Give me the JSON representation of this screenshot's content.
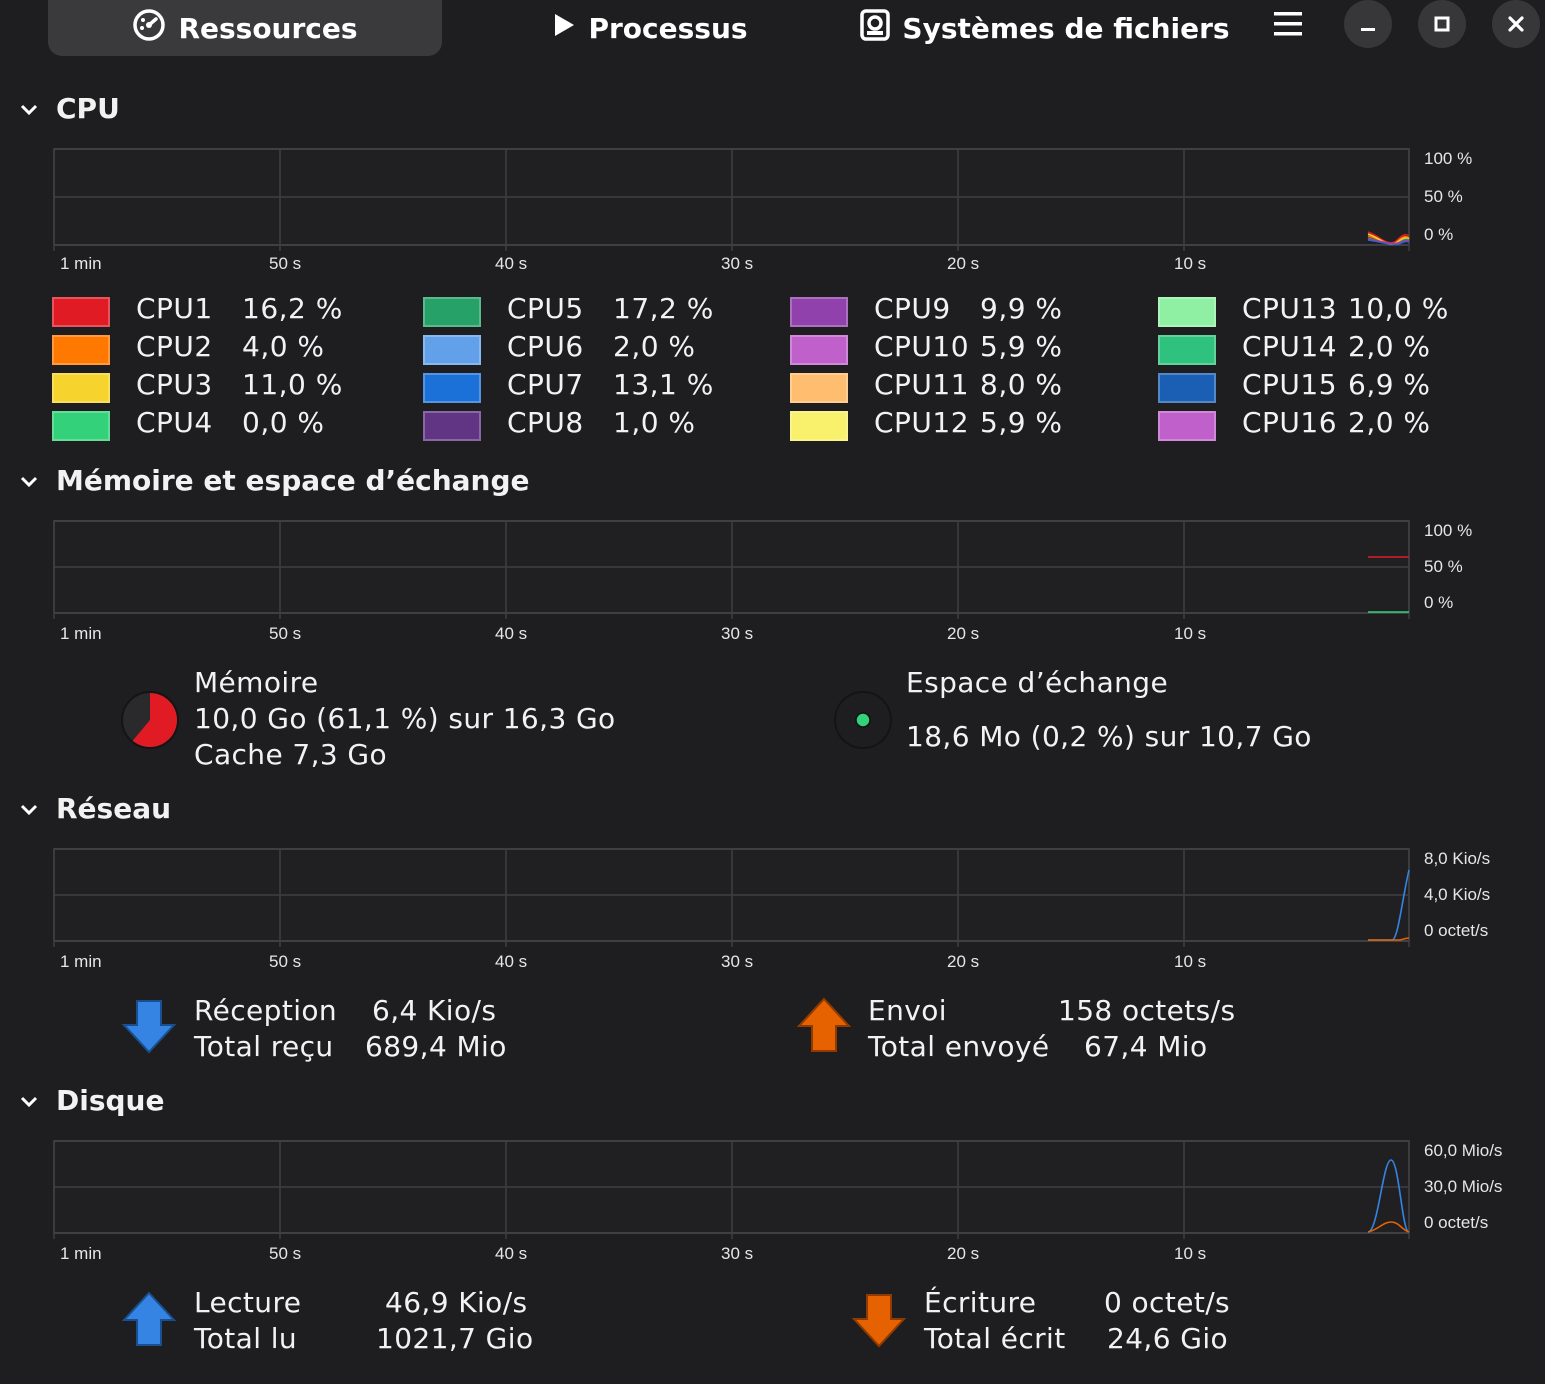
{
  "header": {
    "tabs": [
      {
        "label": "Ressources",
        "icon": "gauge-icon",
        "active": true
      },
      {
        "label": "Processus",
        "icon": "play-icon",
        "active": false
      },
      {
        "label": "Systèmes de fichiers",
        "icon": "disk-icon",
        "active": false
      }
    ],
    "menu_icon": "hamburger-menu-icon",
    "window_controls": [
      "minimize-icon",
      "maximize-icon",
      "close-icon"
    ]
  },
  "time_ticks": [
    "1 min",
    "50 s",
    "40 s",
    "30 s",
    "20 s",
    "10 s"
  ],
  "cpu": {
    "title": "CPU",
    "y_labels": [
      "100 %",
      "50 %",
      "0 %"
    ],
    "cores": [
      {
        "name": "CPU1",
        "value": "16,2 %",
        "color": "#e01b24"
      },
      {
        "name": "CPU2",
        "value": "4,0 %",
        "color": "#ff7800"
      },
      {
        "name": "CPU3",
        "value": "11,0 %",
        "color": "#f6d32d"
      },
      {
        "name": "CPU4",
        "value": "0,0 %",
        "color": "#33d17a"
      },
      {
        "name": "CPU5",
        "value": "17,2 %",
        "color": "#26a269"
      },
      {
        "name": "CPU6",
        "value": "2,0 %",
        "color": "#62a0ea"
      },
      {
        "name": "CPU7",
        "value": "13,1 %",
        "color": "#1c71d8"
      },
      {
        "name": "CPU8",
        "value": "1,0 %",
        "color": "#613583"
      },
      {
        "name": "CPU9",
        "value": "9,9 %",
        "color": "#9141ac"
      },
      {
        "name": "CPU10",
        "value": "5,9 %",
        "color": "#c061cb"
      },
      {
        "name": "CPU11",
        "value": "8,0 %",
        "color": "#ffbe6f"
      },
      {
        "name": "CPU12",
        "value": "5,9 %",
        "color": "#f9f06b"
      },
      {
        "name": "CPU13",
        "value": "10,0 %",
        "color": "#8ff0a4"
      },
      {
        "name": "CPU14",
        "value": "2,0 %",
        "color": "#2ec27e"
      },
      {
        "name": "CPU15",
        "value": "6,9 %",
        "color": "#1a5fb4"
      },
      {
        "name": "CPU16",
        "value": "2,0 %",
        "color": "#c061cb"
      }
    ]
  },
  "memory": {
    "title": "Mémoire et espace d’échange",
    "y_labels": [
      "100 %",
      "50 %",
      "0 %"
    ],
    "mem_label": "Mémoire",
    "mem_usage": "10,0 Go (61,1 %) sur 16,3 Go",
    "mem_cache": "Cache 7,3 Go",
    "mem_fraction": 0.611,
    "mem_color": "#e01b24",
    "swap_label": "Espace d’échange",
    "swap_usage": "18,6 Mo (0,2 %) sur 10,7 Go",
    "swap_color": "#33d17a"
  },
  "network": {
    "title": "Réseau",
    "y_labels": [
      "8,0 Kio/s",
      "4,0 Kio/s",
      "0 octet/s"
    ],
    "rx_label": "Réception",
    "rx_value": "6,4 Kio/s",
    "rx_total_label": "Total reçu",
    "rx_total_value": "689,4 Mio",
    "tx_label": "Envoi",
    "tx_value": "158 octets/s",
    "tx_total_label": "Total envoyé",
    "tx_total_value": "67,4 Mio",
    "rx_color": "#3584e4",
    "tx_color": "#e66100"
  },
  "disk": {
    "title": "Disque",
    "y_labels": [
      "60,0 Mio/s",
      "30,0 Mio/s",
      "0 octet/s"
    ],
    "read_label": "Lecture",
    "read_value": "46,9 Kio/s",
    "read_total_label": "Total lu",
    "read_total_value": "1021,7 Gio",
    "write_label": "Écriture",
    "write_value": "0 octet/s",
    "write_total_label": "Total écrit",
    "write_total_value": "24,6 Gio",
    "read_color": "#3584e4",
    "write_color": "#e66100"
  }
}
